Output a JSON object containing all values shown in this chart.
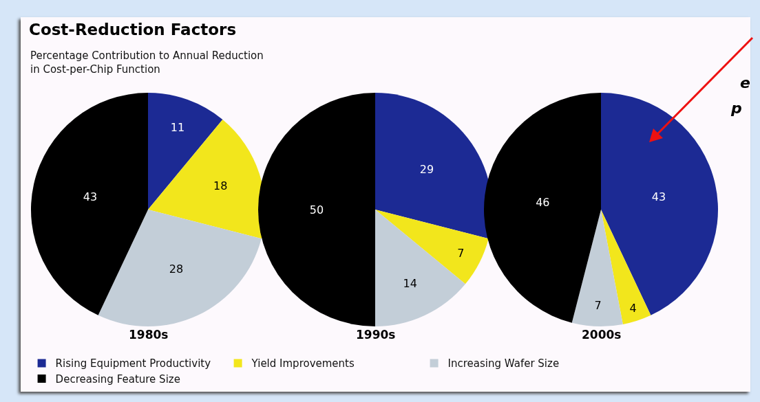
{
  "chart_data": [
    {
      "type": "pie",
      "title": "Cost-Reduction Factors",
      "subtitle": "Percentage Contribution to Annual Reduction in Cost-per-Chip Function",
      "xlabel": "1980s",
      "categories": [
        "Rising Equipment Productivity",
        "Yield Improvements",
        "Increasing Wafer Size",
        "Decreasing Feature Size"
      ],
      "values": [
        11,
        18,
        28,
        43
      ],
      "colors": [
        "#1c2a94",
        "#f2e61c",
        "#c3ced8",
        "#000000"
      ],
      "data_labels": true,
      "legend": "bottom"
    },
    {
      "type": "pie",
      "xlabel": "1990s",
      "categories": [
        null,
        null,
        null,
        null
      ],
      "values": [
        29,
        7,
        14,
        50
      ],
      "colors": [
        "#1c2a94",
        "#f2e61c",
        "#c3ced8",
        "#000000"
      ],
      "data_labels": true
    },
    {
      "type": "pie",
      "xlabel": "2000s",
      "categories": [
        null,
        null,
        null,
        null
      ],
      "values": [
        43,
        4,
        7,
        46
      ],
      "colors": [
        "#1c2a94",
        "#f2e61c",
        "#c3ced8",
        "#000000"
      ],
      "data_labels": true,
      "annotations": [
        "e",
        "p"
      ]
    }
  ]
}
